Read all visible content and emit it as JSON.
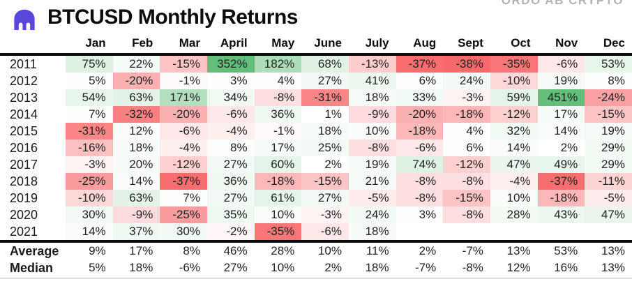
{
  "header": {
    "title": "BTCUSD Monthly Returns",
    "watermark": "ORDO AB CRYPTO",
    "logo_icon": "kraken-logo",
    "logo_color": "#5946DB",
    "watermark_color": "#B3B3B3"
  },
  "chart_data": {
    "type": "heatmap",
    "title": "BTCUSD Monthly Returns",
    "value_format": "percent",
    "columns": [
      "Jan",
      "Feb",
      "Mar",
      "April",
      "May",
      "June",
      "July",
      "Aug",
      "Sept",
      "Oct",
      "Nov",
      "Dec"
    ],
    "rows": [
      {
        "label": "2011",
        "values": [
          75,
          22,
          -15,
          352,
          182,
          68,
          -13,
          -37,
          -38,
          -35,
          -6,
          53
        ]
      },
      {
        "label": "2012",
        "values": [
          5,
          -20,
          -1,
          3,
          4,
          27,
          41,
          6,
          24,
          -10,
          19,
          8
        ]
      },
      {
        "label": "2013",
        "values": [
          54,
          63,
          171,
          34,
          -8,
          -31,
          18,
          33,
          -3,
          59,
          451,
          -24
        ]
      },
      {
        "label": "2014",
        "values": [
          7,
          -32,
          -20,
          -6,
          36,
          1,
          -9,
          -20,
          -18,
          -12,
          17,
          -15
        ]
      },
      {
        "label": "2015",
        "values": [
          -31,
          12,
          -6,
          -4,
          -1,
          18,
          10,
          -18,
          4,
          32,
          14,
          19
        ]
      },
      {
        "label": "2016",
        "values": [
          -16,
          18,
          -4,
          8,
          17,
          25,
          -8,
          -6,
          6,
          14,
          2,
          29
        ]
      },
      {
        "label": "2017",
        "values": [
          -3,
          20,
          -12,
          27,
          60,
          2,
          19,
          74,
          -12,
          47,
          49,
          29
        ]
      },
      {
        "label": "2018",
        "values": [
          -25,
          14,
          -37,
          36,
          -18,
          -15,
          21,
          -8,
          -8,
          -4,
          -37,
          -11
        ]
      },
      {
        "label": "2019",
        "values": [
          -10,
          63,
          7,
          27,
          61,
          27,
          -5,
          -8,
          -15,
          10,
          -18,
          -5
        ]
      },
      {
        "label": "2020",
        "values": [
          30,
          -9,
          -25,
          35,
          10,
          -3,
          24,
          3,
          -8,
          28,
          43,
          47
        ]
      },
      {
        "label": "2021",
        "values": [
          14,
          37,
          30,
          -2,
          -35,
          -6,
          18,
          null,
          null,
          null,
          null,
          null
        ]
      }
    ],
    "summary_rows": [
      {
        "label": "Average",
        "values": [
          9,
          17,
          8,
          46,
          28,
          10,
          11,
          2,
          -7,
          13,
          53,
          13
        ]
      },
      {
        "label": "Median",
        "values": [
          5,
          18,
          -6,
          27,
          10,
          2,
          18,
          -7,
          -8,
          12,
          16,
          13
        ]
      }
    ],
    "colorscale": {
      "positive_end": "#63BE7B",
      "negative_end": "#F8696B",
      "neutral": "#FFFFFF",
      "positive_cap": 350,
      "negative_cap": -38
    },
    "legend_position": "none",
    "grid": false
  }
}
